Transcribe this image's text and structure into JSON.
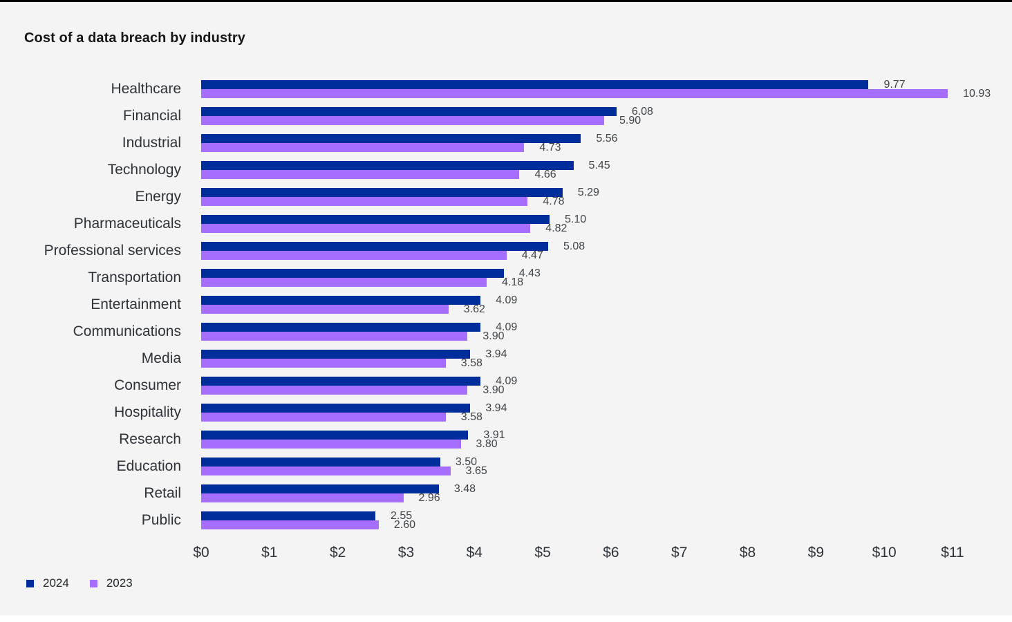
{
  "title": "Cost of a data breach by industry",
  "chart_data": {
    "type": "bar",
    "orientation": "horizontal",
    "title": "Cost of a data breach by industry",
    "xlabel": "",
    "ylabel": "",
    "unit": "USD millions",
    "xlim": [
      0,
      11
    ],
    "x_ticks": [
      "$0",
      "$1",
      "$2",
      "$3",
      "$4",
      "$5",
      "$6",
      "$7",
      "$8",
      "$9",
      "$10",
      "$11"
    ],
    "grid": false,
    "legend_position": "bottom-left",
    "value_labels_shown": true,
    "categories": [
      "Healthcare",
      "Financial",
      "Industrial",
      "Technology",
      "Energy",
      "Pharmaceuticals",
      "Professional services",
      "Transportation",
      "Entertainment",
      "Communications",
      "Media",
      "Consumer",
      "Hospitality",
      "Research",
      "Education",
      "Retail",
      "Public"
    ],
    "series": [
      {
        "name": "2024",
        "color": "#002d9c",
        "values": [
          9.77,
          6.08,
          5.56,
          5.45,
          5.29,
          5.1,
          5.08,
          4.43,
          4.09,
          4.09,
          3.94,
          4.09,
          3.94,
          3.91,
          3.5,
          3.48,
          2.55
        ]
      },
      {
        "name": "2023",
        "color": "#a56eff",
        "values": [
          10.93,
          5.9,
          4.73,
          4.66,
          4.78,
          4.82,
          4.47,
          4.18,
          3.62,
          3.9,
          3.58,
          3.9,
          3.58,
          3.8,
          3.65,
          2.96,
          2.6
        ]
      }
    ]
  },
  "legend": {
    "items": [
      {
        "label": "2024",
        "color": "#002d9c"
      },
      {
        "label": "2023",
        "color": "#a56eff"
      }
    ]
  },
  "colors": {
    "background": "#f4f4f4",
    "top_border": "#000000",
    "bar_2024": "#002d9c",
    "bar_2023": "#a56eff",
    "category_text": "#2d3339",
    "value_text": "#3f4448",
    "title_text": "#161616"
  }
}
